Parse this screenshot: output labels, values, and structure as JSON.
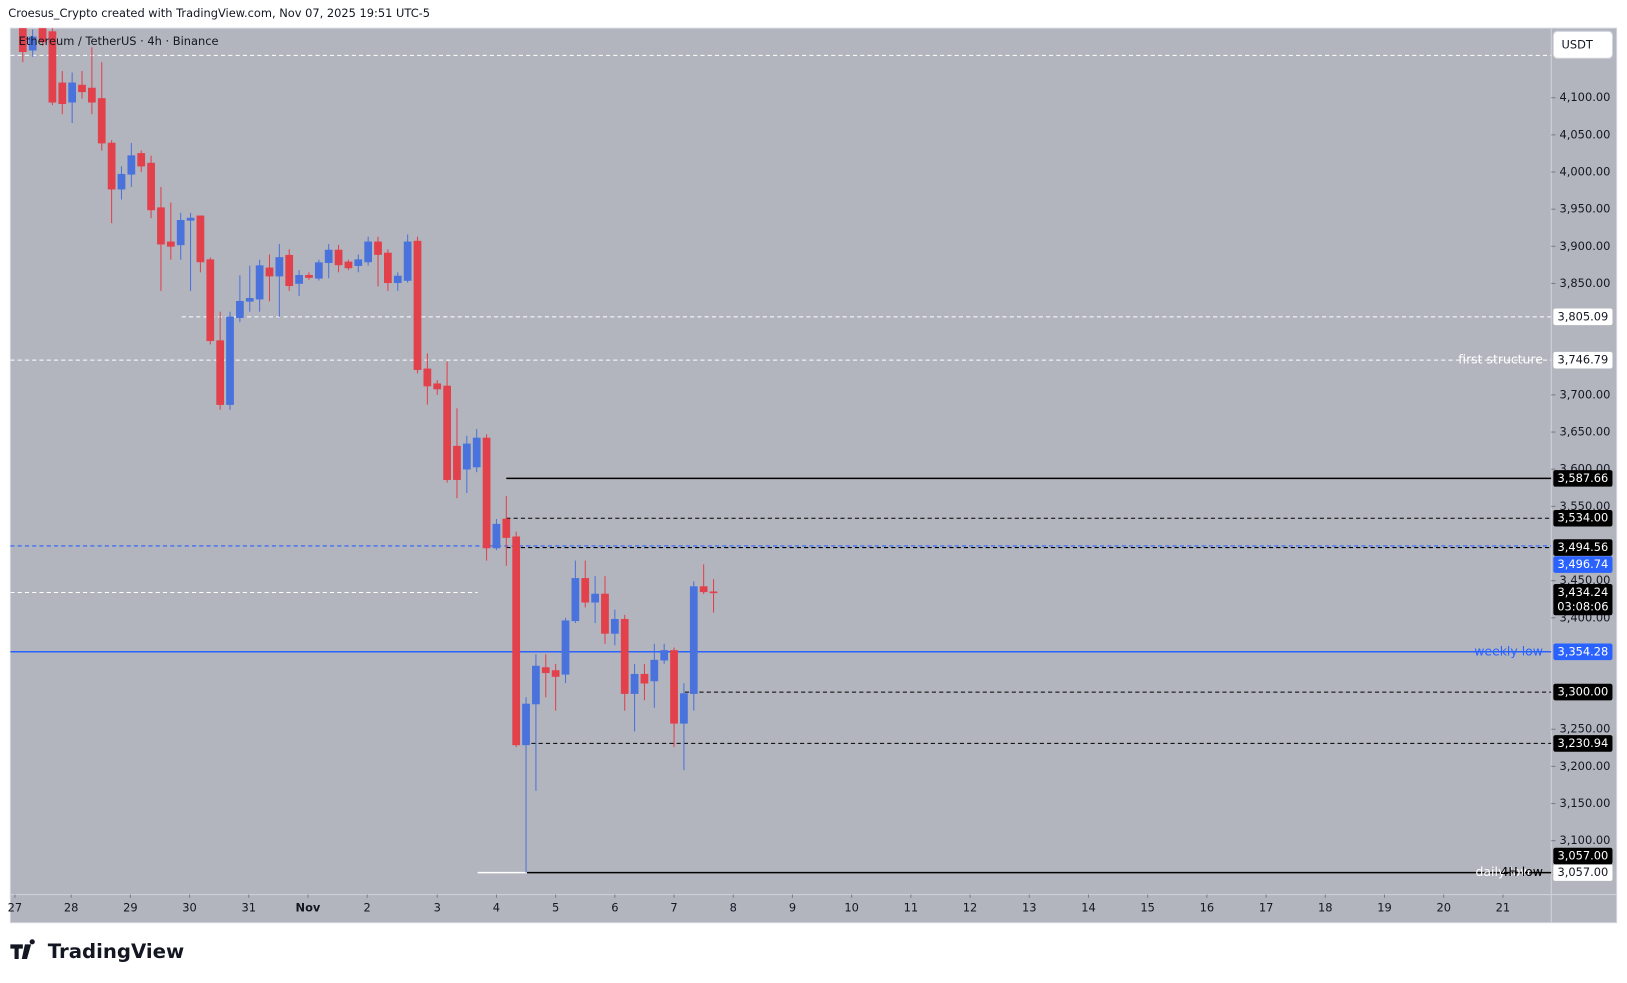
{
  "header": {
    "credit": "Croesus_Crypto created with TradingView.com, Nov 07, 2025 19:51 UTC-5",
    "logo": "TradingView"
  },
  "chart_data": {
    "type": "candlestick",
    "title": "Ethereum / TetherUS · 4h · Binance",
    "currency": "USDT",
    "up_color": "#4a72dc",
    "down_color": "#e2404b",
    "background": "#b2b5be",
    "grid": false,
    "ylim": [
      3027.4,
      4193.6
    ],
    "yticks": [
      {
        "value": 3100,
        "label": "3,100.00"
      },
      {
        "value": 3150,
        "label": "3,150.00"
      },
      {
        "value": 3200,
        "label": "3,200.00"
      },
      {
        "value": 3250,
        "label": "3,250.00"
      },
      {
        "value": 3400,
        "label": "3,400.00"
      },
      {
        "value": 3450,
        "label": "3,450.00"
      },
      {
        "value": 3550,
        "label": "3,550.00"
      },
      {
        "value": 3600,
        "label": "3,600.00"
      },
      {
        "value": 3650,
        "label": "3,650.00"
      },
      {
        "value": 3700,
        "label": "3,700.00"
      },
      {
        "value": 3850,
        "label": "3,850.00"
      },
      {
        "value": 3900,
        "label": "3,900.00"
      },
      {
        "value": 3950,
        "label": "3,950.00"
      },
      {
        "value": 4000,
        "label": "4,000.00"
      },
      {
        "value": 4050,
        "label": "4,050.00"
      },
      {
        "value": 4100,
        "label": "4,100.00"
      }
    ],
    "xlim": [
      -1.26,
      154.9
    ],
    "xticks": [
      {
        "value": -0.8,
        "label": "27"
      },
      {
        "value": 4.9,
        "label": "28"
      },
      {
        "value": 10.9,
        "label": "29"
      },
      {
        "value": 16.9,
        "label": "30"
      },
      {
        "value": 22.9,
        "label": "31"
      },
      {
        "value": 28.9,
        "label": "Nov"
      },
      {
        "value": 34.9,
        "label": "2"
      },
      {
        "value": 42,
        "label": "3"
      },
      {
        "value": 48,
        "label": "4"
      },
      {
        "value": 54,
        "label": "5"
      },
      {
        "value": 60,
        "label": "6"
      },
      {
        "value": 66,
        "label": "7"
      },
      {
        "value": 72,
        "label": "8"
      },
      {
        "value": 78,
        "label": "9"
      },
      {
        "value": 84,
        "label": "10"
      },
      {
        "value": 90,
        "label": "11"
      },
      {
        "value": 96,
        "label": "12"
      },
      {
        "value": 102,
        "label": "13"
      },
      {
        "value": 108,
        "label": "14"
      },
      {
        "value": 114,
        "label": "15"
      },
      {
        "value": 120,
        "label": "16"
      },
      {
        "value": 126,
        "label": "17"
      },
      {
        "value": 132,
        "label": "18"
      },
      {
        "value": 138,
        "label": "19"
      },
      {
        "value": 144,
        "label": "20"
      },
      {
        "value": 150,
        "label": "21"
      }
    ],
    "candles": [
      {
        "o": 4194,
        "h": 4200,
        "l": 4148,
        "c": 4162
      },
      {
        "o": 4164,
        "h": 4192,
        "l": 4155,
        "c": 4182
      },
      {
        "o": 4194,
        "h": 4205,
        "l": 4170,
        "c": 4175
      },
      {
        "o": 4189,
        "h": 4200,
        "l": 4090,
        "c": 4094
      },
      {
        "o": 4120,
        "h": 4136,
        "l": 4078,
        "c": 4092
      },
      {
        "o": 4094,
        "h": 4134,
        "l": 4066,
        "c": 4120
      },
      {
        "o": 4117,
        "h": 4136,
        "l": 4099,
        "c": 4108
      },
      {
        "o": 4113,
        "h": 4168,
        "l": 4078,
        "c": 4094
      },
      {
        "o": 4099,
        "h": 4148,
        "l": 4029,
        "c": 4039
      },
      {
        "o": 4039,
        "h": 4043,
        "l": 3931,
        "c": 3977
      },
      {
        "o": 3977,
        "h": 4008,
        "l": 3963,
        "c": 3997
      },
      {
        "o": 3997,
        "h": 4039,
        "l": 3980,
        "c": 4022
      },
      {
        "o": 4025,
        "h": 4029,
        "l": 4000,
        "c": 4008
      },
      {
        "o": 4012,
        "h": 4022,
        "l": 3938,
        "c": 3949
      },
      {
        "o": 3952,
        "h": 3980,
        "l": 3840,
        "c": 3903
      },
      {
        "o": 3906,
        "h": 3959,
        "l": 3882,
        "c": 3900
      },
      {
        "o": 3902,
        "h": 3945,
        "l": 3882,
        "c": 3935
      },
      {
        "o": 3935,
        "h": 3945,
        "l": 3840,
        "c": 3938
      },
      {
        "o": 3941,
        "h": 3941,
        "l": 3865,
        "c": 3879
      },
      {
        "o": 3882,
        "h": 3885,
        "l": 3768,
        "c": 3773
      },
      {
        "o": 3773,
        "h": 3812,
        "l": 3680,
        "c": 3687
      },
      {
        "o": 3687,
        "h": 3812,
        "l": 3680,
        "c": 3805
      },
      {
        "o": 3804,
        "h": 3861,
        "l": 3798,
        "c": 3826
      },
      {
        "o": 3826,
        "h": 3874,
        "l": 3812,
        "c": 3830
      },
      {
        "o": 3829,
        "h": 3882,
        "l": 3812,
        "c": 3874
      },
      {
        "o": 3871,
        "h": 3889,
        "l": 3826,
        "c": 3860
      },
      {
        "o": 3860,
        "h": 3903,
        "l": 3805,
        "c": 3885
      },
      {
        "o": 3888,
        "h": 3896,
        "l": 3840,
        "c": 3847
      },
      {
        "o": 3850,
        "h": 3868,
        "l": 3833,
        "c": 3861
      },
      {
        "o": 3861,
        "h": 3865,
        "l": 3855,
        "c": 3858
      },
      {
        "o": 3857,
        "h": 3882,
        "l": 3854,
        "c": 3878
      },
      {
        "o": 3878,
        "h": 3903,
        "l": 3857,
        "c": 3895
      },
      {
        "o": 3895,
        "h": 3902,
        "l": 3865,
        "c": 3875
      },
      {
        "o": 3879,
        "h": 3882,
        "l": 3868,
        "c": 3871
      },
      {
        "o": 3874,
        "h": 3889,
        "l": 3865,
        "c": 3882
      },
      {
        "o": 3879,
        "h": 3913,
        "l": 3874,
        "c": 3906
      },
      {
        "o": 3906,
        "h": 3913,
        "l": 3846,
        "c": 3889
      },
      {
        "o": 3891,
        "h": 3896,
        "l": 3840,
        "c": 3851
      },
      {
        "o": 3851,
        "h": 3865,
        "l": 3840,
        "c": 3860
      },
      {
        "o": 3854,
        "h": 3916,
        "l": 3851,
        "c": 3906
      },
      {
        "o": 3907,
        "h": 3913,
        "l": 3729,
        "c": 3734
      },
      {
        "o": 3735,
        "h": 3756,
        "l": 3687,
        "c": 3712
      },
      {
        "o": 3715,
        "h": 3720,
        "l": 3700,
        "c": 3708
      },
      {
        "o": 3712,
        "h": 3745,
        "l": 3582,
        "c": 3586
      },
      {
        "o": 3631,
        "h": 3682,
        "l": 3561,
        "c": 3586
      },
      {
        "o": 3600,
        "h": 3645,
        "l": 3568,
        "c": 3634
      },
      {
        "o": 3603,
        "h": 3654,
        "l": 3596,
        "c": 3642
      },
      {
        "o": 3642,
        "h": 3647,
        "l": 3477,
        "c": 3494
      },
      {
        "o": 3494,
        "h": 3533,
        "l": 3491,
        "c": 3526
      },
      {
        "o": 3533,
        "h": 3564,
        "l": 3470,
        "c": 3508
      },
      {
        "o": 3509,
        "h": 3516,
        "l": 3226,
        "c": 3229
      },
      {
        "o": 3229,
        "h": 3293,
        "l": 3057,
        "c": 3284
      },
      {
        "o": 3284,
        "h": 3351,
        "l": 3167,
        "c": 3335
      },
      {
        "o": 3333,
        "h": 3351,
        "l": 3293,
        "c": 3326
      },
      {
        "o": 3329,
        "h": 3338,
        "l": 3275,
        "c": 3321
      },
      {
        "o": 3324,
        "h": 3400,
        "l": 3312,
        "c": 3396
      },
      {
        "o": 3396,
        "h": 3477,
        "l": 3393,
        "c": 3453
      },
      {
        "o": 3453,
        "h": 3477,
        "l": 3414,
        "c": 3421
      },
      {
        "o": 3421,
        "h": 3456,
        "l": 3393,
        "c": 3432
      },
      {
        "o": 3432,
        "h": 3456,
        "l": 3365,
        "c": 3379
      },
      {
        "o": 3379,
        "h": 3411,
        "l": 3363,
        "c": 3398
      },
      {
        "o": 3398,
        "h": 3404,
        "l": 3275,
        "c": 3298
      },
      {
        "o": 3298,
        "h": 3338,
        "l": 3247,
        "c": 3324
      },
      {
        "o": 3324,
        "h": 3338,
        "l": 3289,
        "c": 3312
      },
      {
        "o": 3315,
        "h": 3365,
        "l": 3279,
        "c": 3343
      },
      {
        "o": 3343,
        "h": 3365,
        "l": 3338,
        "c": 3356
      },
      {
        "o": 3356,
        "h": 3360,
        "l": 3226,
        "c": 3258
      },
      {
        "o": 3258,
        "h": 3312,
        "l": 3195,
        "c": 3298
      },
      {
        "o": 3298,
        "h": 3449,
        "l": 3275,
        "c": 3442
      },
      {
        "o": 3442,
        "h": 3472,
        "l": 3432,
        "c": 3435
      },
      {
        "o": 3435,
        "h": 3452,
        "l": 3407,
        "c": 3434.24
      }
    ],
    "last_price": {
      "value": 3434.24,
      "label": "3,434.24",
      "countdown": "03:08:06"
    },
    "levels": [
      {
        "value": 4157,
        "from": -1.26,
        "style": "dashed",
        "color": "#ffffff"
      },
      {
        "value": 3805.09,
        "label": "3,805.09",
        "from": 16.1,
        "style": "dashed",
        "color": "#ffffff",
        "label_bg": "#ffffff",
        "label_color": "#131722"
      },
      {
        "value": 3746.79,
        "label": "3,746.79",
        "text": "first structure",
        "from": -1.26,
        "style": "dashed",
        "color": "#ffffff",
        "label_bg": "#ffffff",
        "label_color": "#131722"
      },
      {
        "value": 3587.66,
        "label": "3,587.66",
        "from": 49,
        "style": "solid",
        "color": "#000000",
        "label_bg": "#000000",
        "label_color": "#ffffff"
      },
      {
        "value": 3534.0,
        "label": "3,534.00",
        "from": 49,
        "style": "dashed",
        "color": "#000000",
        "label_bg": "#000000",
        "label_color": "#ffffff"
      },
      {
        "value": 3494.56,
        "label": "3,494.56",
        "from": 49,
        "style": "dashed",
        "color": "#000000",
        "label_bg": "#000000",
        "label_color": "#ffffff"
      },
      {
        "value": 3496.74,
        "label": "3,496.74",
        "from": -1.26,
        "style": "dashed",
        "color": "#2962ff",
        "label_bg": "#2962ff",
        "label_color": "#ffffff"
      },
      {
        "value": 3434,
        "from": -1.26,
        "to": 46.1,
        "style": "dashed",
        "color": "#ffffff"
      },
      {
        "value": 3354.28,
        "label": "3,354.28",
        "text": "weekly low",
        "from": -1.26,
        "style": "solid",
        "color": "#2962ff",
        "label_bg": "#2962ff",
        "label_color": "#ffffff"
      },
      {
        "value": 3300.0,
        "label": "3,300.00",
        "from": 67.1,
        "style": "dashed",
        "color": "#000000",
        "label_bg": "#000000",
        "label_color": "#ffffff"
      },
      {
        "value": 3230.94,
        "label": "3,230.94",
        "from": 50.8,
        "style": "dashed",
        "color": "#000000",
        "label_bg": "#000000",
        "label_color": "#ffffff"
      },
      {
        "value": 3057.0,
        "label": "3,057.00",
        "text": "daily low",
        "from": 46.1,
        "to": 51.1,
        "style": "solid",
        "color": "#ffffff",
        "label_bg": "#ffffff",
        "label_color": "#131722"
      },
      {
        "value": 3057.0,
        "label": "3,057.00",
        "text": "4H low",
        "from": 51.1,
        "style": "solid",
        "color": "#000000",
        "label_bg": "#000000",
        "label_color": "#ffffff"
      }
    ]
  }
}
